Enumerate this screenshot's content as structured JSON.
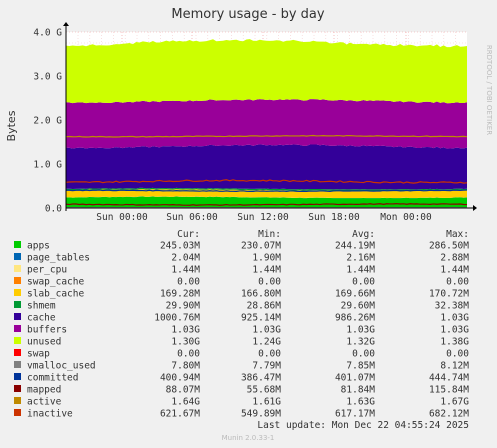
{
  "chart_data": {
    "type": "area",
    "stacked": true,
    "title": "Memory usage - by day",
    "ylabel": "Bytes",
    "ylim": [
      0,
      4.0
    ],
    "yunit": "G",
    "yticks": [
      {
        "value": 0.0,
        "label": "0.0"
      },
      {
        "value": 1.0,
        "label": "1.0 G"
      },
      {
        "value": 2.0,
        "label": "2.0 G"
      },
      {
        "value": 3.0,
        "label": "3.0 G"
      },
      {
        "value": 4.0,
        "label": "4.0 G"
      }
    ],
    "xticks": [
      "Sun 00:00",
      "Sun 06:00",
      "Sun 12:00",
      "Sun 18:00",
      "Mon 00:00"
    ],
    "side_label": "RRDTOOL / TOBI OETIKER",
    "grid": true,
    "legend_headers": {
      "cur": "Cur:",
      "min": "Min:",
      "avg": "Avg:",
      "max": "Max:"
    },
    "series": [
      {
        "name": "apps",
        "color": "#00cc00",
        "kind": "area",
        "cur": "245.03M",
        "min": "230.07M",
        "avg": "244.19M",
        "max": "286.50M"
      },
      {
        "name": "page_tables",
        "color": "#0066b3",
        "kind": "area",
        "cur": "2.04M",
        "min": "1.90M",
        "avg": "2.16M",
        "max": "2.88M"
      },
      {
        "name": "per_cpu",
        "color": "#ffe680",
        "kind": "area",
        "cur": "1.44M",
        "min": "1.44M",
        "avg": "1.44M",
        "max": "1.44M"
      },
      {
        "name": "swap_cache",
        "color": "#ff8000",
        "kind": "area",
        "cur": "0.00",
        "min": "0.00",
        "avg": "0.00",
        "max": "0.00"
      },
      {
        "name": "slab_cache",
        "color": "#ffcc00",
        "kind": "area",
        "cur": "169.28M",
        "min": "166.80M",
        "avg": "169.66M",
        "max": "170.72M"
      },
      {
        "name": "shmem",
        "color": "#009933",
        "kind": "area",
        "cur": "29.90M",
        "min": "28.86M",
        "avg": "29.60M",
        "max": "32.38M"
      },
      {
        "name": "cache",
        "color": "#330099",
        "kind": "area",
        "cur": "1000.76M",
        "min": "925.14M",
        "avg": "986.26M",
        "max": "1.03G"
      },
      {
        "name": "buffers",
        "color": "#990099",
        "kind": "area",
        "cur": "1.03G",
        "min": "1.03G",
        "avg": "1.03G",
        "max": "1.03G"
      },
      {
        "name": "unused",
        "color": "#ccff00",
        "kind": "area",
        "cur": "1.30G",
        "min": "1.24G",
        "avg": "1.32G",
        "max": "1.38G"
      },
      {
        "name": "swap",
        "color": "#ff0000",
        "kind": "area",
        "cur": "0.00",
        "min": "0.00",
        "avg": "0.00",
        "max": "0.00"
      },
      {
        "name": "vmalloc_used",
        "color": "#808080",
        "kind": "line",
        "cur": "7.80M",
        "min": "7.79M",
        "avg": "7.85M",
        "max": "8.12M"
      },
      {
        "name": "committed",
        "color": "#003399",
        "kind": "line",
        "cur": "400.94M",
        "min": "386.47M",
        "avg": "401.07M",
        "max": "444.74M"
      },
      {
        "name": "mapped",
        "color": "#8a0000",
        "kind": "line",
        "cur": "88.07M",
        "min": "55.68M",
        "avg": "81.84M",
        "max": "115.84M"
      },
      {
        "name": "active",
        "color": "#bf8a00",
        "kind": "line",
        "cur": "1.64G",
        "min": "1.61G",
        "avg": "1.63G",
        "max": "1.67G"
      },
      {
        "name": "inactive",
        "color": "#cc3300",
        "kind": "line",
        "cur": "621.67M",
        "min": "549.89M",
        "avg": "617.17M",
        "max": "682.12M"
      }
    ],
    "last_update": "Last update:  Mon Dec 22 04:55:24 2025",
    "footer": "Munin 2.0.33-1"
  }
}
